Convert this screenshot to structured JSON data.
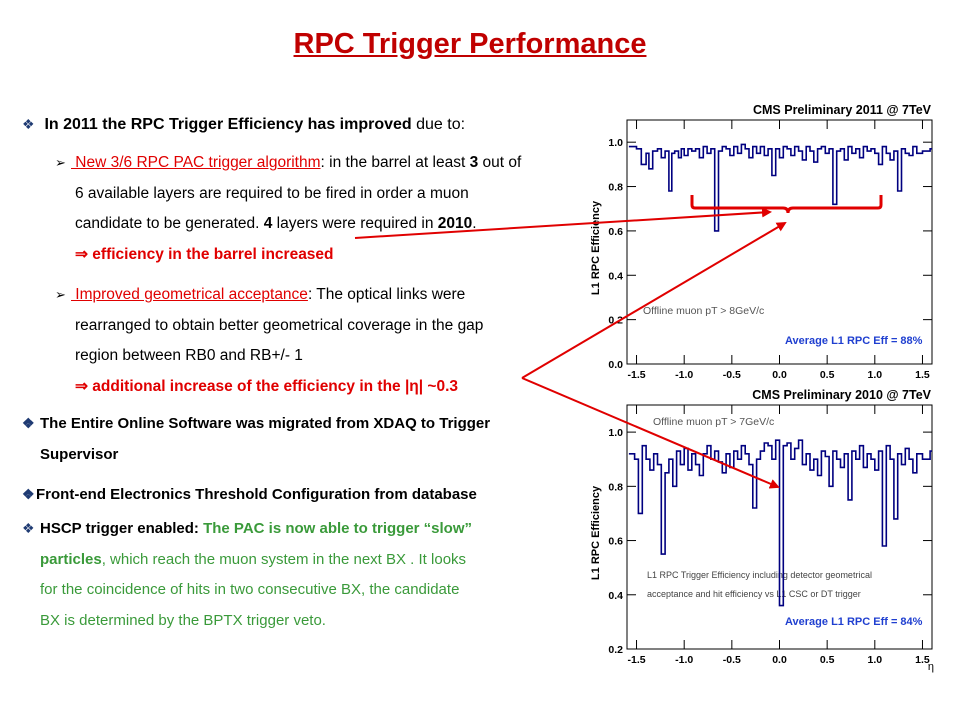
{
  "title": "RPC Trigger Performance",
  "b1": {
    "marker": "❖",
    "bold": "In 2011 the RPC Trigger Efficiency has improved",
    "tail": " due to:"
  },
  "s1": {
    "marker": "➢",
    "link": " New 3/6 RPC PAC trigger algorithm",
    "t1": ": in the barrel at least ",
    "n1": "3",
    "t2": " out of",
    "l2": "6 available layers are required to be fired  in order  a muon",
    "l3a": "candidate to be generated. ",
    "l3b": "4",
    "l3c": " layers were required in ",
    "l3d": "2010",
    "l3e": ".",
    "arrow": "⇒",
    "result": " efficiency in the barrel increased"
  },
  "s2": {
    "marker": "➢",
    "link": " Improved geometrical acceptance",
    "t1": ": The optical links were",
    "l2": "rearranged to obtain better geometrical coverage in the gap",
    "l3": "region between RB0 and RB+/- 1",
    "arrow": "⇒",
    "result": " additional increase of the efficiency in the |η| ~0.3"
  },
  "b2": {
    "marker": "❖",
    "l1": "The Entire Online Software was migrated from XDAQ to Trigger",
    "l2": "Supervisor"
  },
  "b3": {
    "marker": "❖",
    "text": "Front-end Electronics Threshold Configuration from database"
  },
  "b4": {
    "marker": "❖",
    "label": "HSCP trigger enabled:",
    "g1": "The PAC is now able to trigger “slow”",
    "g2a": "particles",
    "g2b": ", which reach the muon system in the next BX . It looks",
    "g3": "for the coincidence of hits in two consecutive BX, the candidate",
    "g4": "BX is determined by the BPTX trigger veto."
  },
  "colors": {
    "title": "#c00000",
    "accent_red": "#e00000",
    "green": "#3a9a3a",
    "avg_label": "#1f3fd0"
  },
  "chart_data": [
    {
      "type": "line",
      "title": "CMS Preliminary 2011 @ 7TeV",
      "xlabel": "",
      "ylabel": "L1 RPC Efficiency",
      "xlim": [
        -1.6,
        1.6
      ],
      "ylim": [
        0,
        1.1
      ],
      "xticks": [
        "-1.5",
        "-1.0",
        "-0.5",
        "0.0",
        "0.5",
        "1.0",
        "1.5"
      ],
      "yticks": [
        "0.0",
        "0.2",
        "0.4",
        "0.6",
        "0.8",
        "1.0"
      ],
      "annotations": [
        "Offline muon pT > 8GeV/c",
        "Average L1 RPC Eff = 88%"
      ],
      "series": [
        {
          "x": [
            -1.58,
            -1.5,
            -1.45,
            -1.4,
            -1.37,
            -1.33,
            -1.28,
            -1.24,
            -1.2,
            -1.16,
            -1.13,
            -1.1,
            -1.06,
            -1.03,
            -1.0,
            -0.96,
            -0.92,
            -0.88,
            -0.84,
            -0.8,
            -0.76,
            -0.72,
            -0.68,
            -0.64,
            -0.6,
            -0.56,
            -0.52,
            -0.48,
            -0.44,
            -0.4,
            -0.36,
            -0.32,
            -0.28,
            -0.24,
            -0.2,
            -0.16,
            -0.12,
            -0.08,
            -0.04,
            0.0,
            0.04,
            0.08,
            0.12,
            0.16,
            0.2,
            0.24,
            0.28,
            0.32,
            0.36,
            0.4,
            0.44,
            0.48,
            0.52,
            0.56,
            0.6,
            0.64,
            0.68,
            0.72,
            0.76,
            0.8,
            0.84,
            0.88,
            0.92,
            0.96,
            1.0,
            1.04,
            1.08,
            1.12,
            1.16,
            1.2,
            1.24,
            1.28,
            1.32,
            1.36,
            1.4,
            1.44,
            1.5,
            1.58
          ],
          "y": [
            0.98,
            0.97,
            0.9,
            0.95,
            0.88,
            0.96,
            0.97,
            0.93,
            0.96,
            0.78,
            0.95,
            0.96,
            0.93,
            0.97,
            0.94,
            0.97,
            0.96,
            0.97,
            0.93,
            0.98,
            0.95,
            0.97,
            0.6,
            0.96,
            0.98,
            0.97,
            0.94,
            0.98,
            0.95,
            0.99,
            0.97,
            0.93,
            0.98,
            0.95,
            0.98,
            0.94,
            0.97,
            0.85,
            0.97,
            0.93,
            0.98,
            0.97,
            0.94,
            0.98,
            0.96,
            0.92,
            0.98,
            0.96,
            0.91,
            0.97,
            0.98,
            0.95,
            0.97,
            0.72,
            0.96,
            0.97,
            0.92,
            0.98,
            0.95,
            0.97,
            0.93,
            0.98,
            0.96,
            0.97,
            0.95,
            0.9,
            0.98,
            0.95,
            0.92,
            0.96,
            0.78,
            0.97,
            0.95,
            0.94,
            0.98,
            0.95,
            0.96,
            0.97
          ]
        }
      ]
    },
    {
      "type": "line",
      "title": "CMS Preliminary 2010 @ 7TeV",
      "xlabel": "η",
      "ylabel": "L1 RPC Efficiency",
      "xlim": [
        -1.6,
        1.6
      ],
      "ylim": [
        0.2,
        1.1
      ],
      "xticks": [
        "-1.5",
        "-1.0",
        "-0.5",
        "0.0",
        "0.5",
        "1.0",
        "1.5"
      ],
      "yticks": [
        "0.2",
        "0.4",
        "0.6",
        "0.8",
        "1.0"
      ],
      "annotations": [
        "Offline muon pT > 7GeV/c",
        "L1 RPC Trigger Efficiency including detector geometrical",
        "acceptance and hit efficiency vs L1 CSC or DT trigger",
        "Average L1 RPC Eff = 84%"
      ],
      "series": [
        {
          "x": [
            -1.58,
            -1.52,
            -1.48,
            -1.44,
            -1.4,
            -1.36,
            -1.32,
            -1.28,
            -1.24,
            -1.2,
            -1.16,
            -1.12,
            -1.08,
            -1.04,
            -1.0,
            -0.96,
            -0.92,
            -0.88,
            -0.84,
            -0.8,
            -0.76,
            -0.72,
            -0.68,
            -0.64,
            -0.6,
            -0.56,
            -0.52,
            -0.48,
            -0.44,
            -0.4,
            -0.36,
            -0.32,
            -0.28,
            -0.24,
            -0.2,
            -0.16,
            -0.12,
            -0.08,
            -0.04,
            0.0,
            0.04,
            0.08,
            0.12,
            0.16,
            0.2,
            0.24,
            0.28,
            0.32,
            0.36,
            0.4,
            0.44,
            0.48,
            0.52,
            0.56,
            0.6,
            0.64,
            0.68,
            0.72,
            0.76,
            0.8,
            0.84,
            0.88,
            0.92,
            0.96,
            1.0,
            1.04,
            1.08,
            1.12,
            1.16,
            1.2,
            1.24,
            1.28,
            1.32,
            1.36,
            1.4,
            1.44,
            1.5,
            1.58
          ],
          "y": [
            0.92,
            0.9,
            0.7,
            0.95,
            0.9,
            0.86,
            0.92,
            0.88,
            0.55,
            0.85,
            0.9,
            0.8,
            0.93,
            0.88,
            0.94,
            0.86,
            0.92,
            0.88,
            0.84,
            0.92,
            0.95,
            0.9,
            0.93,
            0.89,
            0.85,
            0.92,
            0.87,
            0.93,
            0.9,
            0.95,
            0.92,
            0.88,
            0.72,
            0.9,
            0.93,
            0.96,
            0.95,
            0.9,
            0.97,
            0.36,
            0.95,
            0.96,
            0.9,
            0.94,
            0.97,
            0.88,
            0.92,
            0.86,
            0.9,
            0.84,
            0.93,
            0.91,
            0.8,
            0.93,
            0.9,
            0.87,
            0.92,
            0.75,
            0.93,
            0.9,
            0.95,
            0.87,
            0.92,
            0.9,
            0.86,
            0.93,
            0.58,
            0.95,
            0.9,
            0.68,
            0.92,
            0.88,
            0.94,
            0.9,
            0.85,
            0.92,
            0.9,
            0.93
          ]
        }
      ]
    }
  ]
}
